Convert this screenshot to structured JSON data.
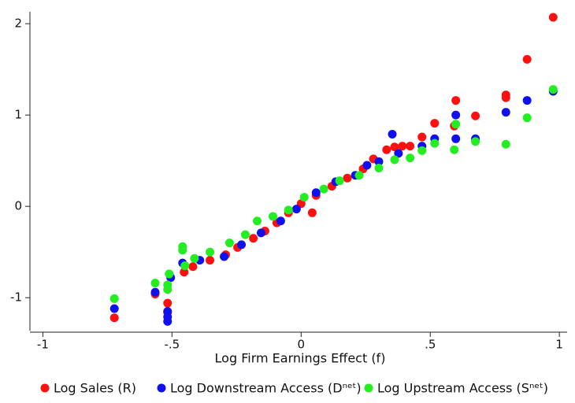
{
  "chart_data": {
    "type": "scatter",
    "x_label": "Log Firm Earnings Effect (f)",
    "xlim": [
      -1.05,
      1.03
    ],
    "ylim": [
      -1.36,
      2.13
    ],
    "xticks": [
      -1,
      {
        "value": -0.5,
        "label": "-.5"
      },
      0,
      {
        "value": 0.5,
        "label": ".5"
      },
      1
    ],
    "yticks": [
      -1,
      0,
      1,
      2
    ],
    "grid": false,
    "legend": "bottom",
    "series": [
      {
        "name": "Log Sales (R)",
        "color": "#ff1010",
        "x": [
          -0.723,
          -0.565,
          -0.517,
          -0.517,
          -0.453,
          -0.419,
          -0.353,
          -0.292,
          -0.246,
          -0.185,
          -0.14,
          -0.094,
          -0.049,
          0,
          0.043,
          0.058,
          0.119,
          0.179,
          0.24,
          0.28,
          0.331,
          0.362,
          0.392,
          0.422,
          0.468,
          0.517,
          0.599,
          0.593,
          0.675,
          0.793,
          0.793,
          0.875,
          0.976
        ],
        "values": [
          -1.22,
          -0.96,
          -1.06,
          -1.16,
          -0.72,
          -0.66,
          -0.59,
          -0.53,
          -0.45,
          -0.35,
          -0.27,
          -0.18,
          -0.07,
          0.03,
          -0.07,
          0.12,
          0.22,
          0.31,
          0.41,
          0.52,
          0.62,
          0.65,
          0.66,
          0.66,
          0.76,
          0.91,
          1.16,
          0.88,
          0.99,
          1.22,
          1.19,
          1.61,
          2.07
        ]
      },
      {
        "name": "Log Downstream Access (Dⁿᵉᵗ)",
        "color": "#1010ee",
        "x": [
          -0.723,
          -0.565,
          -0.517,
          -0.517,
          -0.517,
          -0.505,
          -0.459,
          -0.392,
          -0.298,
          -0.231,
          -0.155,
          -0.079,
          -0.018,
          0.058,
          0.134,
          0.21,
          0.255,
          0.301,
          0.353,
          0.377,
          0.468,
          0.517,
          0.599,
          0.599,
          0.675,
          0.793,
          0.875,
          0.976
        ],
        "values": [
          -1.12,
          -0.94,
          -1.15,
          -1.21,
          -1.26,
          -0.78,
          -0.62,
          -0.59,
          -0.55,
          -0.42,
          -0.29,
          -0.16,
          -0.03,
          0.15,
          0.27,
          0.34,
          0.45,
          0.49,
          0.79,
          0.58,
          0.66,
          0.74,
          1.0,
          0.74,
          0.74,
          1.03,
          1.16,
          1.26
        ]
      },
      {
        "name": "Log Upstream Access (Sⁿᵉᵗ)",
        "color": "#22ee22",
        "x": [
          -0.723,
          -0.565,
          -0.511,
          -0.517,
          -0.517,
          -0.459,
          -0.459,
          -0.45,
          -0.413,
          -0.353,
          -0.277,
          -0.216,
          -0.17,
          -0.109,
          -0.049,
          0.012,
          0.088,
          0.149,
          0.225,
          0.301,
          0.362,
          0.422,
          0.468,
          0.517,
          0.593,
          0.599,
          0.675,
          0.793,
          0.875,
          0.976
        ],
        "values": [
          -1.01,
          -0.84,
          -0.74,
          -0.86,
          -0.91,
          -0.48,
          -0.44,
          -0.65,
          -0.57,
          -0.5,
          -0.4,
          -0.31,
          -0.16,
          -0.11,
          -0.04,
          0.1,
          0.19,
          0.28,
          0.34,
          0.42,
          0.51,
          0.53,
          0.61,
          0.69,
          0.62,
          0.9,
          0.71,
          0.68,
          0.97,
          1.28
        ]
      }
    ]
  }
}
